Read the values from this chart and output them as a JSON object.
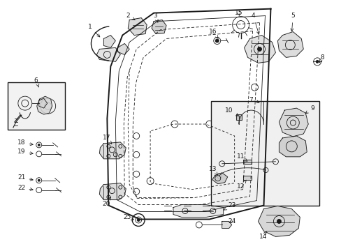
{
  "bg_color": "#ffffff",
  "fig_width": 4.89,
  "fig_height": 3.6,
  "dpi": 100,
  "line_color": "#1a1a1a",
  "label_color": "#000000",
  "font_size": 6.5
}
